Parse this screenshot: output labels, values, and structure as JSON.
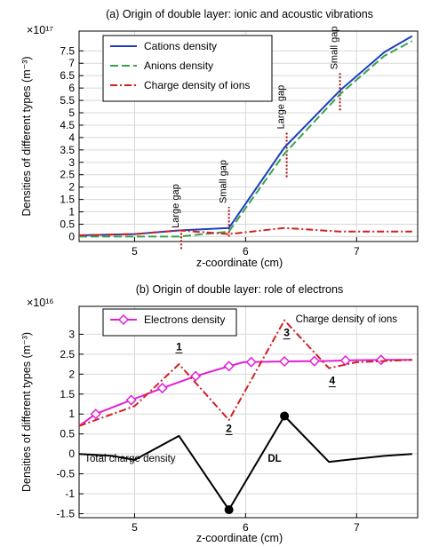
{
  "chart_data": [
    {
      "type": "line",
      "title": "(a) Origin of double layer: ionic and acoustic vibrations",
      "xlabel": "z-coordinate (cm)",
      "ylabel": "Densities of different types (m⁻³)",
      "y_multiplier": "×10¹⁷",
      "xlim": [
        4.5,
        7.55
      ],
      "ylim": [
        -0.2,
        8.3
      ],
      "x_ticks": [
        5,
        6,
        7
      ],
      "y_ticks": [
        0,
        0.5,
        1,
        1.5,
        2,
        2.5,
        3,
        3.5,
        4,
        4.5,
        5,
        5.5,
        6,
        6.5,
        7,
        7.5
      ],
      "grid": true,
      "legend": "top-left",
      "series": [
        {
          "name": "Cations density",
          "color": "#1f3fbf",
          "dash": "solid",
          "x": [
            4.5,
            5.0,
            5.4,
            5.85,
            6.35,
            6.85,
            7.25,
            7.5
          ],
          "y": [
            0.05,
            0.1,
            0.25,
            0.35,
            3.6,
            5.9,
            7.45,
            8.1
          ]
        },
        {
          "name": "Anions density",
          "color": "#3aa34a",
          "dash": "long",
          "x": [
            4.5,
            5.0,
            5.4,
            5.85,
            6.35,
            6.85,
            7.25,
            7.5
          ],
          "y": [
            0.0,
            0.0,
            0.0,
            0.2,
            3.35,
            5.75,
            7.3,
            7.9
          ]
        },
        {
          "name": "Charge density of ions",
          "color": "#d21f1f",
          "dash": "dashdot",
          "x": [
            4.5,
            5.0,
            5.4,
            5.85,
            6.35,
            6.85,
            7.25,
            7.5
          ],
          "y": [
            0.05,
            0.1,
            0.25,
            0.1,
            0.35,
            0.2,
            0.2,
            0.2
          ]
        }
      ],
      "annotations": [
        {
          "text": "Large gap",
          "x": 5.42,
          "y_bottom": -0.5,
          "y_top": 0.2
        },
        {
          "text": "Small gap",
          "x": 5.85,
          "y_bottom": 0.0,
          "y_top": 1.2
        },
        {
          "text": "Large gap",
          "x": 6.37,
          "y_bottom": 2.4,
          "y_top": 4.2
        },
        {
          "text": "Small gap",
          "x": 6.85,
          "y_bottom": 5.1,
          "y_top": 6.6
        }
      ]
    },
    {
      "type": "line",
      "title": "(b) Origin of double layer: role of electrons",
      "xlabel": "z-coordinate (cm)",
      "ylabel": "Densities of different types (m⁻³)",
      "y_multiplier": "×10¹⁶",
      "xlim": [
        4.5,
        7.55
      ],
      "ylim": [
        -1.6,
        3.7
      ],
      "x_ticks": [
        5,
        6,
        7
      ],
      "y_ticks": [
        -1.5,
        -1,
        -0.5,
        0,
        0.5,
        1,
        1.5,
        2,
        2.5,
        3
      ],
      "grid": true,
      "legend": "top-left",
      "series": [
        {
          "name": "Electrons density",
          "color": "#e020d8",
          "dash": "solid",
          "marker": "diamond",
          "x": [
            4.5,
            4.65,
            4.97,
            5.25,
            5.55,
            5.85,
            5.98,
            6.35,
            6.75,
            7.0,
            7.3,
            7.5
          ],
          "y": [
            0.7,
            1.0,
            1.35,
            1.65,
            1.95,
            2.2,
            2.3,
            2.32,
            2.33,
            2.35,
            2.36,
            2.36
          ],
          "marker_x": [
            4.65,
            4.97,
            5.25,
            5.55,
            5.85,
            6.05,
            6.35,
            6.62,
            6.9,
            7.22
          ]
        },
        {
          "name": "Charge density of ions",
          "color": "#d21f1f",
          "dash": "dashdot",
          "x": [
            4.5,
            5.0,
            5.4,
            5.85,
            6.35,
            6.75,
            7.0,
            7.5
          ],
          "y": [
            0.7,
            1.2,
            2.25,
            0.85,
            3.35,
            2.15,
            2.3,
            2.36
          ]
        },
        {
          "name": "Total charge density",
          "color": "#000000",
          "dash": "solid",
          "x": [
            4.5,
            4.8,
            5.0,
            5.4,
            5.85,
            6.35,
            6.75,
            7.25,
            7.5
          ],
          "y": [
            0.0,
            -0.05,
            -0.15,
            0.45,
            -1.4,
            0.95,
            -0.2,
            -0.05,
            0.0
          ],
          "dots_x": [
            5.85,
            6.35
          ],
          "dots_y": [
            -1.4,
            0.95
          ]
        }
      ],
      "annotations": [
        {
          "text": "1",
          "x": 5.4,
          "y": 2.6
        },
        {
          "text": "2",
          "x": 5.85,
          "y": 0.55
        },
        {
          "text": "3",
          "x": 6.37,
          "y": 2.95
        },
        {
          "text": "4",
          "x": 6.78,
          "y": 1.75
        },
        {
          "text": "Charge density of ions",
          "x": 6.45,
          "y": 3.3
        },
        {
          "text": "Total charge density",
          "x": 4.55,
          "y": -0.2
        },
        {
          "text": "DL",
          "x": 6.2,
          "y": -0.2
        }
      ]
    }
  ]
}
